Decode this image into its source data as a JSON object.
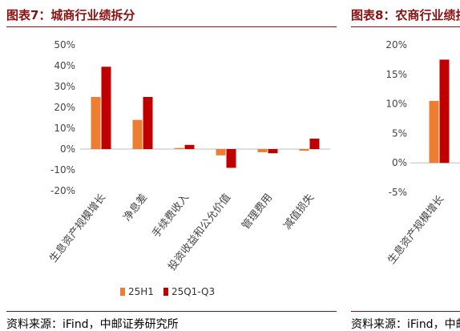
{
  "left_panel": {
    "title": "图表7：城商行业绩拆分",
    "source": "资料来源：iFind，中邮证券研究所"
  },
  "right_panel": {
    "title": "图表8：农商行业绩拆分",
    "source": "资料来源：iFind，中邮证券研究所"
  },
  "colors": {
    "series1": "#ed7d31",
    "series2": "#c00000",
    "rule": "#8b1111",
    "title": "#8b0f0f"
  },
  "chart_data": [
    {
      "type": "bar",
      "categories": [
        "生息资产规模增长",
        "净息差",
        "手续费收入",
        "投资收益和公允价值",
        "管理费用",
        "减值损失"
      ],
      "series": [
        {
          "name": "25H1",
          "values": [
            25,
            14,
            0.5,
            -3,
            -1.5,
            -0.8
          ]
        },
        {
          "name": "25Q1-Q3",
          "values": [
            39.5,
            25,
            2,
            -9,
            -2,
            5
          ]
        }
      ],
      "yticks": [
        "50%",
        "40%",
        "30%",
        "20%",
        "10%",
        "0%",
        "-10%",
        "-20%"
      ],
      "ylim": [
        -20,
        50
      ],
      "legend_position": "bottom"
    },
    {
      "type": "bar",
      "categories": [
        "生息资产规模增长"
      ],
      "series": [
        {
          "name": "25H1",
          "values": [
            10.5
          ]
        },
        {
          "name": "25Q1-Q3",
          "values": [
            17.5
          ]
        }
      ],
      "yticks": [
        "20%",
        "15%",
        "10%",
        "5%",
        "0%",
        "-5%"
      ],
      "ylim": [
        -5,
        20
      ]
    }
  ]
}
